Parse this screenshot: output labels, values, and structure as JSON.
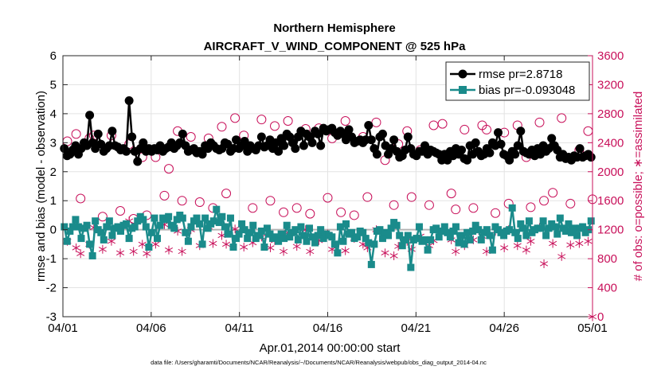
{
  "chart_data": {
    "type": "line",
    "title": "Northern Hemisphere",
    "subtitle": "AIRCRAFT_V_WIND_COMPONENT @ 525 hPa",
    "xlabel": "Apr.01,2014 00:00:00 start",
    "ylabel": "rmse and bias (model - observation)",
    "y2label": "# of obs: o=possible; ∗=assimilated",
    "footnote": "data file: /Users/gharamti/Documents/NCAR/Reanalysis/~/Documents/NCAR/Reanalysis/webpub/obs_diag_output_2014-04.nc",
    "xlim": [
      0,
      30
    ],
    "ylim": [
      -3,
      6
    ],
    "y2lim": [
      0,
      3600
    ],
    "x_ticks": [
      0,
      5,
      10,
      15,
      20,
      25,
      30
    ],
    "x_tick_labels": [
      "04/01",
      "04/06",
      "04/11",
      "04/16",
      "04/21",
      "04/26",
      "05/01"
    ],
    "y_ticks": [
      -3,
      -2,
      -1,
      0,
      1,
      2,
      3,
      4,
      5,
      6
    ],
    "y_tick_labels": [
      "-3",
      "-2",
      "-1",
      "0",
      "1",
      "2",
      "3",
      "4",
      "5",
      "6"
    ],
    "y2_ticks": [
      0,
      400,
      800,
      1200,
      1600,
      2000,
      2400,
      2800,
      3200,
      3600
    ],
    "y2_tick_labels": [
      "0",
      "400",
      "800",
      "1200",
      "1600",
      "2000",
      "2400",
      "2800",
      "3200",
      "3600"
    ],
    "zero_line": 0,
    "series": [
      {
        "name": "rmse pr=2.8718",
        "color": "#000000",
        "axis": "left",
        "values": [
          2.8,
          2.55,
          2.6,
          2.75,
          2.9,
          2.6,
          2.8,
          3.0,
          2.9,
          3.95,
          3.0,
          2.8,
          3.3,
          2.95,
          2.7,
          2.8,
          2.9,
          3.4,
          2.9,
          2.85,
          2.75,
          2.8,
          2.7,
          4.45,
          3.2,
          2.7,
          2.35,
          2.8,
          3.0,
          2.7,
          2.8,
          2.7,
          2.8,
          2.75,
          2.9,
          2.7,
          2.8,
          2.85,
          3.0,
          2.8,
          2.9,
          3.0,
          3.3,
          2.9,
          2.7,
          2.75,
          2.8,
          2.65,
          2.7,
          2.6,
          2.9,
          2.8,
          3.0,
          2.9,
          2.8,
          2.75,
          2.8,
          3.0,
          2.95,
          2.7,
          2.8,
          3.1,
          2.8,
          2.9,
          3.05,
          2.7,
          2.9,
          2.8,
          2.75,
          2.9,
          3.2,
          2.85,
          2.9,
          3.1,
          2.8,
          3.0,
          2.7,
          3.15,
          2.9,
          3.3,
          3.2,
          3.0,
          2.8,
          3.2,
          3.4,
          2.9,
          3.3,
          3.2,
          3.0,
          3.4,
          3.3,
          2.9,
          3.5,
          3.4,
          3.45,
          3.5,
          3.35,
          3.25,
          3.4,
          3.3,
          3.1,
          3.45,
          3.2,
          3.0,
          3.05,
          3.1,
          3.0,
          3.1,
          3.6,
          3.1,
          2.8,
          2.6,
          3.2,
          3.3,
          2.9,
          2.6,
          2.8,
          3.1,
          2.7,
          2.5,
          2.55,
          2.75,
          3.2,
          2.8,
          2.6,
          2.55,
          2.7,
          2.7,
          2.9,
          2.6,
          2.75,
          2.7,
          2.65,
          2.6,
          2.4,
          2.6,
          2.4,
          2.7,
          2.55,
          2.8,
          2.6,
          2.75,
          2.45,
          2.4,
          2.9,
          2.6,
          3.0,
          2.7,
          2.55,
          2.6,
          2.8,
          2.65,
          3.0,
          2.9,
          3.35,
          2.95,
          2.6,
          2.55,
          2.4,
          2.7,
          2.6,
          2.9,
          3.4,
          2.7,
          2.65,
          2.6,
          2.75,
          2.55,
          2.8,
          2.6,
          2.9,
          2.7,
          2.8,
          3.15,
          2.9,
          2.75,
          2.5,
          2.6,
          2.45,
          2.5,
          2.4,
          2.55,
          2.5,
          2.8,
          2.5,
          2.55,
          2.6,
          2.5
        ]
      },
      {
        "name": "bias pr=-0.093048",
        "color": "#1a8b8b",
        "axis": "left",
        "values": [
          0.1,
          -0.4,
          -0.05,
          0.1,
          0.35,
          0.1,
          -0.3,
          0.05,
          0.15,
          -0.5,
          -0.9,
          0.3,
          0.0,
          -0.1,
          -0.35,
          0.1,
          0.3,
          -0.2,
          0.05,
          0.1,
          -0.05,
          0.15,
          0.2,
          -0.3,
          0.05,
          0.1,
          0.3,
          0.45,
          0.35,
          0.1,
          -0.6,
          -0.1,
          0.4,
          -0.3,
          0.15,
          0.4,
          0.35,
          0.45,
          0.15,
          0.05,
          0.35,
          0.5,
          0.4,
          -0.1,
          -0.4,
          0.1,
          0.3,
          0.4,
          0.2,
          -0.5,
          0.4,
          0.05,
          0.2,
          0.3,
          0.7,
          0.25,
          0.45,
          0.1,
          -0.15,
          0.4,
          -0.6,
          -0.3,
          -0.15,
          0.2,
          0.0,
          -0.3,
          -0.1,
          0.15,
          -0.3,
          -0.2,
          -0.05,
          -0.6,
          0.05,
          -0.15,
          -0.3,
          -0.25,
          -0.4,
          -0.15,
          -0.3,
          0.15,
          -0.25,
          -0.1,
          0.0,
          -0.35,
          0.1,
          -0.2,
          -0.4,
          0.05,
          -0.25,
          -0.45,
          -0.2,
          0.0,
          -0.3,
          -0.15,
          -0.2,
          -0.25,
          -0.5,
          -0.8,
          0.1,
          -0.4,
          0.2,
          -0.15,
          -0.1,
          -0.3,
          -0.25,
          -0.05,
          -0.1,
          -0.3,
          -0.45,
          -1.2,
          -0.5,
          -0.05,
          0.0,
          -0.3,
          -0.1,
          -0.2,
          0.05,
          0.25,
          0.15,
          -0.2,
          -0.55,
          -0.35,
          -0.2,
          -1.3,
          -0.35,
          -0.3,
          0.1,
          -0.4,
          -0.35,
          -0.7,
          -0.35,
          0.0,
          0.05,
          -0.25,
          -0.05,
          0.1,
          -0.1,
          -0.25,
          -0.05,
          0.1,
          -0.45,
          -0.2,
          -0.5,
          -0.1,
          -0.35,
          -0.05,
          0.15,
          0.0,
          -0.35,
          -0.1,
          0.0,
          -0.2,
          -0.7,
          0.1,
          0.0,
          -0.1,
          -0.2,
          -0.05,
          0.0,
          0.75,
          -0.1,
          -0.3,
          0.2,
          0.05,
          -0.2,
          0.3,
          -0.1,
          0.0,
          0.05,
          0.05,
          0.3,
          -0.2,
          0.05,
          0.2,
          0.1,
          -0.15,
          0.4,
          0.05,
          -0.05,
          0.2,
          -0.1,
          0.05,
          -0.2,
          0.05,
          0.1,
          -0.1,
          0.0,
          0.3
        ]
      },
      {
        "name": "obs possible",
        "color": "#c8105a",
        "axis": "right",
        "marker": "o",
        "x": [
          0.25,
          0.75,
          1.0,
          1.5,
          1.75,
          2.25,
          2.75,
          3.25,
          3.75,
          4.0,
          4.5,
          4.75,
          5.25,
          5.75,
          6.0,
          6.5,
          6.75,
          7.25,
          7.75,
          8.25,
          8.5,
          9.0,
          9.25,
          9.75,
          10.25,
          10.75,
          11.25,
          11.75,
          12.0,
          12.5,
          12.75,
          13.25,
          13.75,
          14.0,
          14.5,
          15.0,
          15.25,
          15.75,
          16.0,
          16.5,
          17.0,
          17.25,
          17.75,
          18.25,
          18.75,
          19.0,
          19.5,
          19.75,
          20.25,
          20.75,
          21.0,
          21.5,
          22.0,
          22.25,
          22.75,
          23.25,
          23.75,
          24.0,
          24.5,
          25.0,
          25.25,
          25.75,
          26.25,
          26.5,
          27.0,
          27.25,
          27.75,
          28.25,
          28.75,
          29.25,
          29.75,
          30.0
        ],
        "values": [
          2420,
          2520,
          1630,
          2460,
          2500,
          1380,
          2500,
          1460,
          2380,
          1350,
          2200,
          1400,
          2200,
          1670,
          2040,
          2560,
          1600,
          2480,
          1580,
          2460,
          1500,
          2620,
          1700,
          2740,
          2500,
          1500,
          2720,
          1600,
          2630,
          1440,
          2700,
          1500,
          2590,
          1420,
          2600,
          1640,
          2460,
          1440,
          2700,
          1400,
          2480,
          1650,
          2680,
          2160,
          1540,
          2380,
          2560,
          1650,
          2300,
          1540,
          2640,
          2660,
          1700,
          1480,
          2580,
          1500,
          2640,
          2580,
          1430,
          2540,
          1560,
          2640,
          2200,
          1510,
          2680,
          1600,
          1710,
          2740,
          1560,
          2300,
          2560,
          1620
        ]
      },
      {
        "name": "obs assimilated",
        "color": "#c8105a",
        "axis": "right",
        "marker": "*",
        "x": [
          0.25,
          0.75,
          1.0,
          1.5,
          1.75,
          2.25,
          2.75,
          3.25,
          3.75,
          4.0,
          4.5,
          4.75,
          5.25,
          5.75,
          6.0,
          6.5,
          6.75,
          7.25,
          7.75,
          8.25,
          8.5,
          9.0,
          9.25,
          9.75,
          10.25,
          10.75,
          11.25,
          11.75,
          12.0,
          12.5,
          12.75,
          13.25,
          13.75,
          14.0,
          14.5,
          15.0,
          15.25,
          15.75,
          16.0,
          16.5,
          17.0,
          17.25,
          17.75,
          18.25,
          18.75,
          19.0,
          19.5,
          19.75,
          20.25,
          20.75,
          21.0,
          21.5,
          22.0,
          22.25,
          22.75,
          23.25,
          23.75,
          24.0,
          24.5,
          25.0,
          25.25,
          25.75,
          26.25,
          26.5,
          27.0,
          27.25,
          27.75,
          28.25,
          28.75,
          29.25,
          29.75,
          30.0
        ],
        "values": [
          1040,
          950,
          870,
          1000,
          1230,
          930,
          1040,
          880,
          1320,
          900,
          1000,
          870,
          1000,
          1270,
          920,
          1180,
          900,
          1200,
          980,
          1240,
          1010,
          1120,
          1000,
          1210,
          960,
          1020,
          1100,
          950,
          1050,
          900,
          1160,
          970,
          1200,
          900,
          1050,
          1140,
          930,
          1220,
          910,
          1080,
          1000,
          950,
          1200,
          880,
          840,
          970,
          1040,
          930,
          1110,
          980,
          1050,
          1200,
          1060,
          900,
          980,
          1060,
          1110,
          900,
          1180,
          950,
          1200,
          980,
          920,
          1040,
          1230,
          730,
          1010,
          830,
          990,
          1010,
          1040,
          0
        ]
      }
    ],
    "legend": {
      "position": "top-right",
      "entries": [
        "rmse pr=2.8718",
        "bias pr=-0.093048"
      ]
    }
  }
}
